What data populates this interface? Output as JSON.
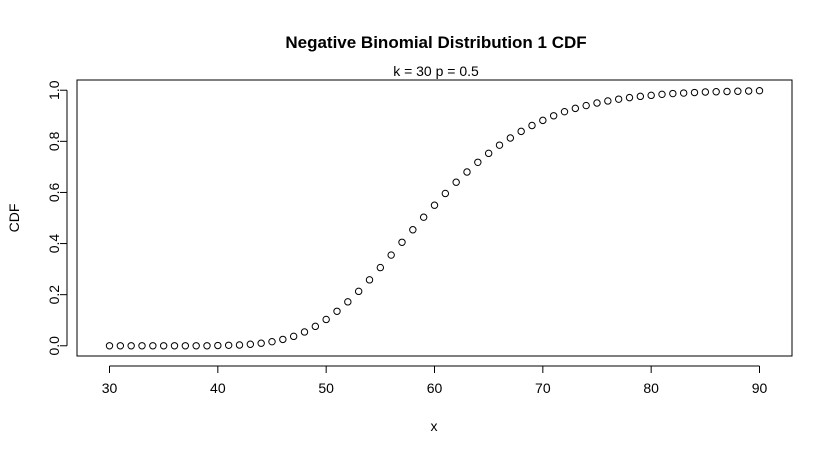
{
  "chart_data": {
    "type": "scatter",
    "title": "Negative Binomial Distribution 1 CDF",
    "subtitle": "k = 30  p = 0.5",
    "xlabel": "x",
    "ylabel": "CDF",
    "xlim": [
      27,
      93
    ],
    "ylim": [
      -0.04,
      1.04
    ],
    "xticks": [
      30,
      40,
      50,
      60,
      70,
      80,
      90
    ],
    "yticks": [
      0.0,
      0.2,
      0.4,
      0.6,
      0.8,
      1.0
    ],
    "xtick_labels": [
      "30",
      "40",
      "50",
      "60",
      "70",
      "80",
      "90"
    ],
    "ytick_labels": [
      "0.0",
      "0.2",
      "0.4",
      "0.6",
      "0.8",
      "1.0"
    ],
    "grid": false,
    "marker": "open-circle",
    "series": [
      {
        "x": [
          30,
          31,
          32,
          33,
          34,
          35,
          36,
          37,
          38,
          39,
          40,
          41,
          42,
          43,
          44,
          45,
          46,
          47,
          48,
          49,
          50,
          51,
          52,
          53,
          54,
          55,
          56,
          57,
          58,
          59,
          60,
          61,
          62,
          63,
          64,
          65,
          66,
          67,
          68,
          69,
          70,
          71,
          72,
          73,
          74,
          75,
          76,
          77,
          78,
          79,
          80,
          81,
          82,
          83,
          84,
          85,
          86,
          87,
          88,
          89,
          90
        ],
        "y": [
          0.0,
          0.0,
          0.0,
          0.0,
          0.0,
          0.0,
          0.0,
          0.0,
          0.0,
          0.0,
          0.001,
          0.002,
          0.003,
          0.006,
          0.01,
          0.016,
          0.025,
          0.037,
          0.054,
          0.076,
          0.103,
          0.135,
          0.172,
          0.213,
          0.258,
          0.306,
          0.355,
          0.405,
          0.454,
          0.503,
          0.55,
          0.596,
          0.64,
          0.68,
          0.718,
          0.753,
          0.785,
          0.813,
          0.839,
          0.862,
          0.882,
          0.9,
          0.916,
          0.929,
          0.94,
          0.95,
          0.958,
          0.965,
          0.971,
          0.976,
          0.98,
          0.984,
          0.987,
          0.989,
          0.991,
          0.993,
          0.994,
          0.995,
          0.996,
          0.997,
          0.998
        ]
      }
    ]
  }
}
